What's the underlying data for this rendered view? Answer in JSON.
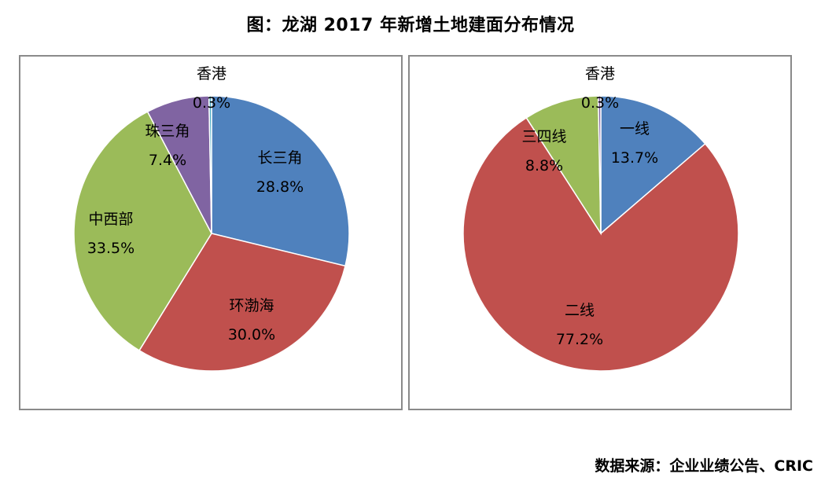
{
  "title": "图：龙湖 2017 年新增土地建面分布情况",
  "source": "数据来源：企业业绩公告、CRIC",
  "chart_data": [
    {
      "type": "pie",
      "slices": [
        {
          "name": "长三角",
          "value": 28.8,
          "label": "28.8%",
          "color": "#4F81BD"
        },
        {
          "name": "环渤海",
          "value": 30.0,
          "label": "30.0%",
          "color": "#C0504D"
        },
        {
          "name": "中西部",
          "value": 33.5,
          "label": "33.5%",
          "color": "#9BBB59"
        },
        {
          "name": "珠三角",
          "value": 7.4,
          "label": "7.4%",
          "color": "#8064A2"
        },
        {
          "name": "香港",
          "value": 0.3,
          "label": "0.3%",
          "color": "#4BACC6"
        }
      ]
    },
    {
      "type": "pie",
      "slices": [
        {
          "name": "一线",
          "value": 13.7,
          "label": "13.7%",
          "color": "#4F81BD"
        },
        {
          "name": "二线",
          "value": 77.2,
          "label": "77.2%",
          "color": "#C0504D"
        },
        {
          "name": "三四线",
          "value": 8.8,
          "label": "8.8%",
          "color": "#9BBB59"
        },
        {
          "name": "香港",
          "value": 0.3,
          "label": "0.3%",
          "color": "#8064A2"
        }
      ]
    }
  ]
}
